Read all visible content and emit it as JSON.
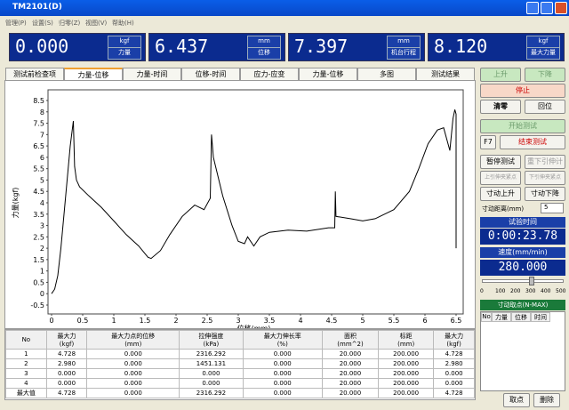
{
  "window": {
    "title": "TM2101(D)"
  },
  "menu": [
    "管理(P)",
    "设置(S)",
    "归零(Z)",
    "视图(V)",
    "帮助(H)"
  ],
  "displays": [
    {
      "value": "0.000",
      "unit": "kgf",
      "label": "力量"
    },
    {
      "value": "6.437",
      "unit": "mm",
      "label": "位移"
    },
    {
      "value": "7.397",
      "unit": "mm",
      "label": "机台行程"
    },
    {
      "value": "8.120",
      "unit": "kgf",
      "label": "最大力量"
    }
  ],
  "tabs": [
    "测试前检查项",
    "力量-位移",
    "力量-时间",
    "位移-时间",
    "应力-应变",
    "力量-位移",
    "多图",
    "测试结果"
  ],
  "chart_data": {
    "type": "line",
    "xlabel": "位移(mm)",
    "ylabel": "力量(kgf)",
    "x": [
      0,
      0.05,
      0.1,
      0.15,
      0.2,
      0.25,
      0.3,
      0.35,
      0.37,
      0.4,
      0.45,
      0.6,
      0.8,
      1.0,
      1.2,
      1.4,
      1.55,
      1.6,
      1.75,
      1.9,
      2.1,
      2.3,
      2.45,
      2.55,
      2.57,
      2.6,
      2.75,
      2.9,
      3.0,
      3.1,
      3.15,
      3.25,
      3.35,
      3.5,
      3.8,
      4.1,
      4.45,
      4.55,
      4.56,
      4.57,
      4.8,
      5.0,
      5.2,
      5.5,
      5.75,
      5.9,
      6.05,
      6.2,
      6.3,
      6.38,
      6.4,
      6.45,
      6.48,
      6.5,
      6.5
    ],
    "series": [
      {
        "color": "#000000",
        "values": [
          0,
          0.2,
          0.8,
          2,
          3.5,
          5,
          6.5,
          7.6,
          5.6,
          5,
          4.7,
          4.3,
          3.8,
          3.2,
          2.6,
          2.1,
          1.6,
          1.55,
          1.9,
          2.6,
          3.4,
          3.9,
          3.7,
          4.2,
          7,
          6,
          4.3,
          3,
          2.3,
          2.2,
          2.5,
          2.1,
          2.5,
          2.7,
          2.8,
          2.75,
          2.9,
          2.9,
          4.5,
          3.4,
          3.3,
          3.2,
          3.3,
          3.7,
          4.5,
          5.5,
          6.6,
          7.2,
          7.3,
          6.5,
          6.3,
          7.7,
          8.1,
          7.9,
          2
        ]
      }
    ],
    "xlim": [
      0,
      6.5
    ],
    "ylim": [
      -0.5,
      8.5
    ],
    "xticks": [
      0,
      0.5,
      1,
      1.5,
      2,
      2.5,
      3,
      3.5,
      4,
      4.5,
      5,
      5.5,
      6,
      6.5
    ],
    "yticks": [
      -0.5,
      0,
      0.5,
      1,
      1.5,
      2,
      2.5,
      3,
      3.5,
      4,
      4.5,
      5,
      5.5,
      6,
      6.5,
      7,
      7.5,
      8,
      8.5
    ]
  },
  "table": {
    "columns": [
      {
        "name": "No",
        "unit": ""
      },
      {
        "name": "最大力",
        "unit": "(kgf)"
      },
      {
        "name": "最大力点的位移",
        "unit": "(mm)"
      },
      {
        "name": "拉伸强度",
        "unit": "(kPa)"
      },
      {
        "name": "最大力伸长率",
        "unit": "(%)"
      },
      {
        "name": "面积",
        "unit": "(mm^2)"
      },
      {
        "name": "标距",
        "unit": "(mm)"
      },
      {
        "name": "最大力",
        "unit": "(kgf)"
      }
    ],
    "rows": [
      [
        "1",
        "4.728",
        "0.000",
        "2316.292",
        "0.000",
        "20.000",
        "200.000",
        "4.728"
      ],
      [
        "2",
        "2.980",
        "0.000",
        "1451.131",
        "0.000",
        "20.000",
        "200.000",
        "2.980"
      ],
      [
        "3",
        "0.000",
        "0.000",
        "0.000",
        "0.000",
        "20.000",
        "200.000",
        "0.000"
      ],
      [
        "4",
        "0.000",
        "0.000",
        "0.000",
        "0.000",
        "20.000",
        "200.000",
        "0.000"
      ],
      [
        "最大值",
        "4.728",
        "0.000",
        "2316.292",
        "0.000",
        "20.000",
        "200.000",
        "4.728"
      ]
    ]
  },
  "controls": {
    "up": "上升",
    "down": "下降",
    "stop": "停止",
    "zero": "清零",
    "home": "回位",
    "start": "开始测试",
    "f7": "F7",
    "end": "结束测试",
    "pause": "暂停测试",
    "extensometer": "重下引伸计",
    "upper_clamp": "上引伸夹紧点",
    "lower_clamp": "下引伸夹紧点",
    "jog_up": "寸动上升",
    "jog_down": "寸动下降",
    "jog_distance_label": "寸动距离(mm)",
    "jog_distance": "5",
    "time_label": "试验时间",
    "time": "0:00:23.78",
    "speed_label": "速度(mm/min)",
    "speed": "280.000",
    "speed_scale": [
      "0",
      "100",
      "200",
      "300",
      "400",
      "500"
    ],
    "points_label": "寸动取点(N-MAX)",
    "points_columns": [
      "No",
      "力量",
      "位移",
      "时间"
    ],
    "take_point": "取点",
    "delete": "删除"
  }
}
